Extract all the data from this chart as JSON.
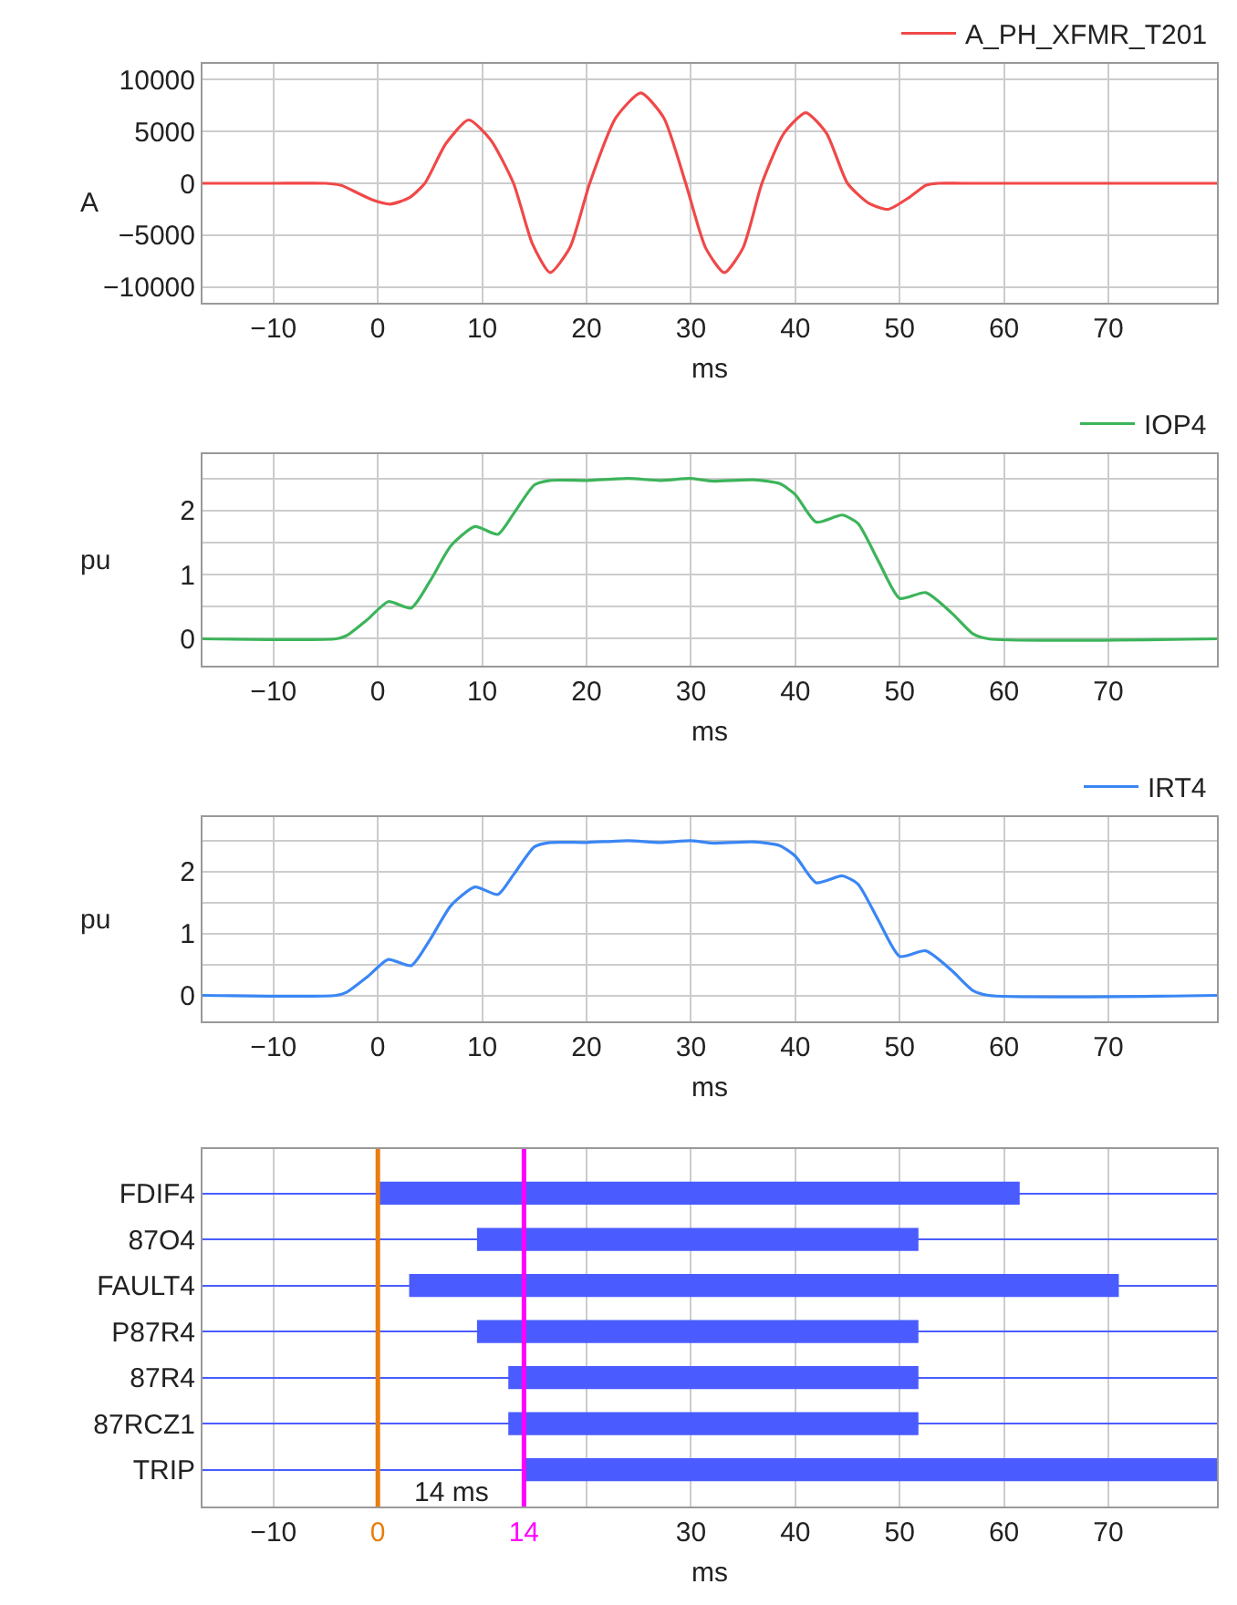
{
  "chart_data": [
    {
      "type": "line",
      "ylabel": "A",
      "xlabel": "ms",
      "legend": "top right",
      "grid": true,
      "xlim": [
        -16.8,
        80.4
      ],
      "ylim": [
        -11500,
        11500
      ],
      "xticks": [
        -10,
        0,
        10,
        20,
        30,
        40,
        50,
        60,
        70
      ],
      "yticks": [
        -10000,
        -5000,
        0,
        5000,
        10000
      ],
      "series": [
        {
          "name": "A_PH_XFMR_T201",
          "color": "#f04848",
          "x": [
            -16.8,
            -10,
            -5,
            -3.5,
            -2,
            -0.5,
            1.2,
            3,
            4.5,
            6.5,
            8.7,
            10.8,
            13,
            14.8,
            16.5,
            18.4,
            20.3,
            22.8,
            25.2,
            27.4,
            29.5,
            31.4,
            33.2,
            35,
            36.8,
            38.9,
            41,
            43,
            45,
            47,
            48.9,
            51,
            52.5,
            53.7,
            56,
            65,
            80.4
          ],
          "values": [
            0,
            0,
            0,
            -200,
            -900,
            -1600,
            -2000,
            -1400,
            0,
            3800,
            6100,
            4200,
            0,
            -5800,
            -8600,
            -6200,
            0,
            6300,
            8700,
            6300,
            0,
            -6200,
            -8600,
            -6200,
            0,
            4800,
            6800,
            4800,
            0,
            -1900,
            -2500,
            -1300,
            -200,
            0,
            0,
            0,
            0
          ]
        }
      ]
    },
    {
      "type": "line",
      "ylabel": "pu",
      "xlabel": "ms",
      "legend": "top right",
      "grid": true,
      "xlim": [
        -16.8,
        80.4
      ],
      "ylim": [
        -0.42,
        2.88
      ],
      "xticks": [
        -10,
        0,
        10,
        20,
        30,
        40,
        50,
        60,
        70
      ],
      "yticks": [
        0,
        {
          "value": 0.5,
          "label": null
        },
        1,
        {
          "value": 1.5,
          "label": null
        },
        2,
        {
          "value": 2.5,
          "label": null
        }
      ],
      "series": [
        {
          "name": "IOP4",
          "color": "#3cb45a",
          "x": [
            -16.8,
            -4,
            -3,
            -1,
            1,
            3.2,
            5,
            7,
            9.3,
            11.5,
            13,
            15,
            16.5,
            20,
            24,
            27,
            30,
            32,
            36,
            38.5,
            40,
            42,
            44.5,
            46,
            48,
            50,
            52.5,
            55,
            57,
            58.5,
            80.4
          ],
          "values": [
            0,
            0,
            0.05,
            0.3,
            0.58,
            0.48,
            0.9,
            1.45,
            1.75,
            1.63,
            1.95,
            2.4,
            2.47,
            2.47,
            2.5,
            2.47,
            2.5,
            2.46,
            2.48,
            2.42,
            2.25,
            1.82,
            1.93,
            1.8,
            1.2,
            0.63,
            0.72,
            0.4,
            0.08,
            0,
            0
          ]
        }
      ]
    },
    {
      "type": "line",
      "ylabel": "pu",
      "xlabel": "ms",
      "legend": "top right",
      "grid": true,
      "xlim": [
        -16.8,
        80.4
      ],
      "ylim": [
        -0.42,
        2.88
      ],
      "xticks": [
        -10,
        0,
        10,
        20,
        30,
        40,
        50,
        60,
        70
      ],
      "yticks": [
        0,
        {
          "value": 0.5,
          "label": null
        },
        1,
        {
          "value": 1.5,
          "label": null
        },
        2,
        {
          "value": 2.5,
          "label": null
        }
      ],
      "series": [
        {
          "name": "IRT4",
          "color": "#3a86f5",
          "x": [
            -16.8,
            -4,
            -3,
            -1,
            1,
            3.2,
            5,
            7,
            9.3,
            11.5,
            13,
            15,
            16.5,
            20,
            24,
            27,
            30,
            32,
            36,
            38.5,
            40,
            42,
            44.5,
            46,
            48,
            50,
            52.5,
            55,
            57,
            58.5,
            80.4
          ],
          "values": [
            0,
            0,
            0.05,
            0.3,
            0.58,
            0.48,
            0.9,
            1.45,
            1.75,
            1.63,
            1.95,
            2.4,
            2.47,
            2.47,
            2.5,
            2.47,
            2.5,
            2.46,
            2.48,
            2.42,
            2.25,
            1.82,
            1.93,
            1.8,
            1.2,
            0.63,
            0.72,
            0.4,
            0.08,
            0,
            0
          ]
        }
      ]
    },
    {
      "type": "bar",
      "orientation": "horizontal",
      "xlabel": "ms",
      "grid": true,
      "color": "#4a5cff",
      "xlim": [
        -16.8,
        80.4
      ],
      "xticks": [
        -10,
        0,
        14,
        {
          "value": 20,
          "label": null
        },
        30,
        40,
        50,
        60,
        70
      ],
      "categories": [
        "FDIF4",
        "87O4",
        "FAULT4",
        "P87R4",
        "87R4",
        "87RCZ1",
        "TRIP"
      ],
      "base": [
        0,
        9.5,
        3,
        9.5,
        12.5,
        12.5,
        14
      ],
      "values": [
        61.5,
        42.3,
        68,
        42.3,
        39.3,
        39.3,
        66.4
      ],
      "ref_lines": [
        {
          "axis": "x",
          "value": 0,
          "label": null,
          "color": "#e87d0d"
        },
        {
          "axis": "x",
          "value": 14,
          "label": null,
          "color": "#ff00ff"
        }
      ],
      "annotations": [
        "14 ms"
      ]
    }
  ]
}
